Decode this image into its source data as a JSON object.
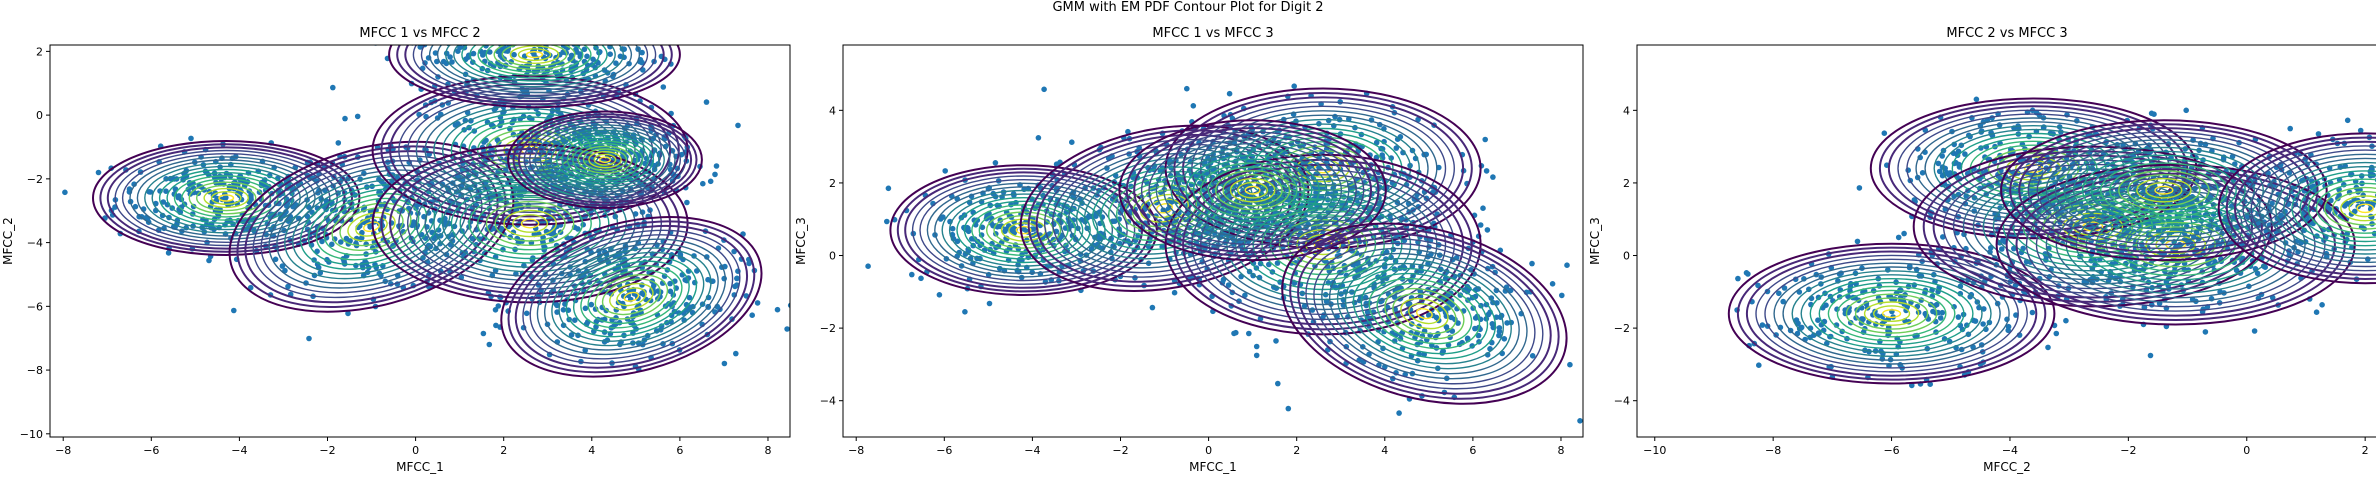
{
  "figure": {
    "suptitle": "GMM with EM PDF Contour Plot for Digit 2"
  },
  "chart_data": [
    {
      "type": "scatter",
      "title": "MFCC 1 vs MFCC 2",
      "xlabel": "MFCC_1",
      "ylabel": "MFCC_2",
      "xlim": [
        -8.3,
        8.5
      ],
      "ylim": [
        -10.1,
        2.2
      ],
      "xticks": [
        -8,
        -6,
        -4,
        -2,
        0,
        2,
        4,
        6,
        8
      ],
      "yticks": [
        -10,
        -8,
        -6,
        -4,
        -2,
        0,
        2
      ],
      "grid": false,
      "point_color": "#1f77b4",
      "contour_colormap": "viridis",
      "gaussian_components": [
        {
          "mean": [
            -4.3,
            -2.6
          ],
          "sd": [
            1.1,
            0.65
          ],
          "angle": 0
        },
        {
          "mean": [
            -1.0,
            -3.5
          ],
          "sd": [
            1.2,
            0.9
          ],
          "angle": 15
        },
        {
          "mean": [
            2.6,
            -1.1
          ],
          "sd": [
            1.3,
            0.85
          ],
          "angle": 0
        },
        {
          "mean": [
            2.6,
            -3.4
          ],
          "sd": [
            1.3,
            0.9
          ],
          "angle": 0
        },
        {
          "mean": [
            4.3,
            -1.4
          ],
          "sd": [
            0.8,
            0.55
          ],
          "angle": 0
        },
        {
          "mean": [
            4.9,
            -5.7
          ],
          "sd": [
            1.1,
            0.85
          ],
          "angle": 15
        },
        {
          "mean": [
            2.7,
            1.9
          ],
          "sd": [
            1.2,
            0.6
          ],
          "angle": 0
        }
      ]
    },
    {
      "type": "scatter",
      "title": "MFCC 1 vs MFCC 3",
      "xlabel": "MFCC_1",
      "ylabel": "MFCC_3",
      "xlim": [
        -8.3,
        8.5
      ],
      "ylim": [
        -5.0,
        5.8
      ],
      "xticks": [
        -8,
        -6,
        -4,
        -2,
        0,
        2,
        4,
        6,
        8
      ],
      "yticks": [
        -4,
        -2,
        0,
        2,
        4
      ],
      "grid": false,
      "point_color": "#1f77b4",
      "contour_colormap": "viridis",
      "gaussian_components": [
        {
          "mean": [
            -4.2,
            0.7
          ],
          "sd": [
            1.1,
            0.65
          ],
          "angle": 0
        },
        {
          "mean": [
            -1.0,
            1.3
          ],
          "sd": [
            1.2,
            0.8
          ],
          "angle": 10
        },
        {
          "mean": [
            2.6,
            2.4
          ],
          "sd": [
            1.3,
            0.8
          ],
          "angle": 0
        },
        {
          "mean": [
            2.6,
            0.3
          ],
          "sd": [
            1.3,
            0.9
          ],
          "angle": 0
        },
        {
          "mean": [
            1.0,
            1.8
          ],
          "sd": [
            1.1,
            0.7
          ],
          "angle": 0
        },
        {
          "mean": [
            4.9,
            -1.6
          ],
          "sd": [
            1.2,
            0.85
          ],
          "angle": -15
        }
      ]
    },
    {
      "type": "scatter",
      "title": "MFCC 2 vs MFCC 3",
      "xlabel": "MFCC_2",
      "ylabel": "MFCC_3",
      "xlim": [
        -10.3,
        2.2
      ],
      "ylim": [
        -5.0,
        5.8
      ],
      "xticks": [
        -10,
        -8,
        -6,
        -4,
        -2,
        0,
        2
      ],
      "yticks": [
        -4,
        -2,
        0,
        2,
        4
      ],
      "grid": false,
      "point_color": "#1f77b4",
      "contour_colormap": "viridis",
      "gaussian_components": [
        {
          "mean": [
            -6.0,
            -1.6
          ],
          "sd": [
            1.0,
            0.7
          ],
          "angle": 0
        },
        {
          "mean": [
            -3.6,
            2.4
          ],
          "sd": [
            1.0,
            0.7
          ],
          "angle": 0
        },
        {
          "mean": [
            -2.6,
            0.8
          ],
          "sd": [
            1.1,
            0.8
          ],
          "angle": 0
        },
        {
          "mean": [
            -1.2,
            0.3
          ],
          "sd": [
            1.1,
            0.8
          ],
          "angle": 0
        },
        {
          "mean": [
            -1.4,
            1.8
          ],
          "sd": [
            1.0,
            0.7
          ],
          "angle": 0
        },
        {
          "mean": [
            2.0,
            1.3
          ],
          "sd": [
            0.9,
            0.75
          ],
          "angle": 0
        }
      ]
    }
  ]
}
